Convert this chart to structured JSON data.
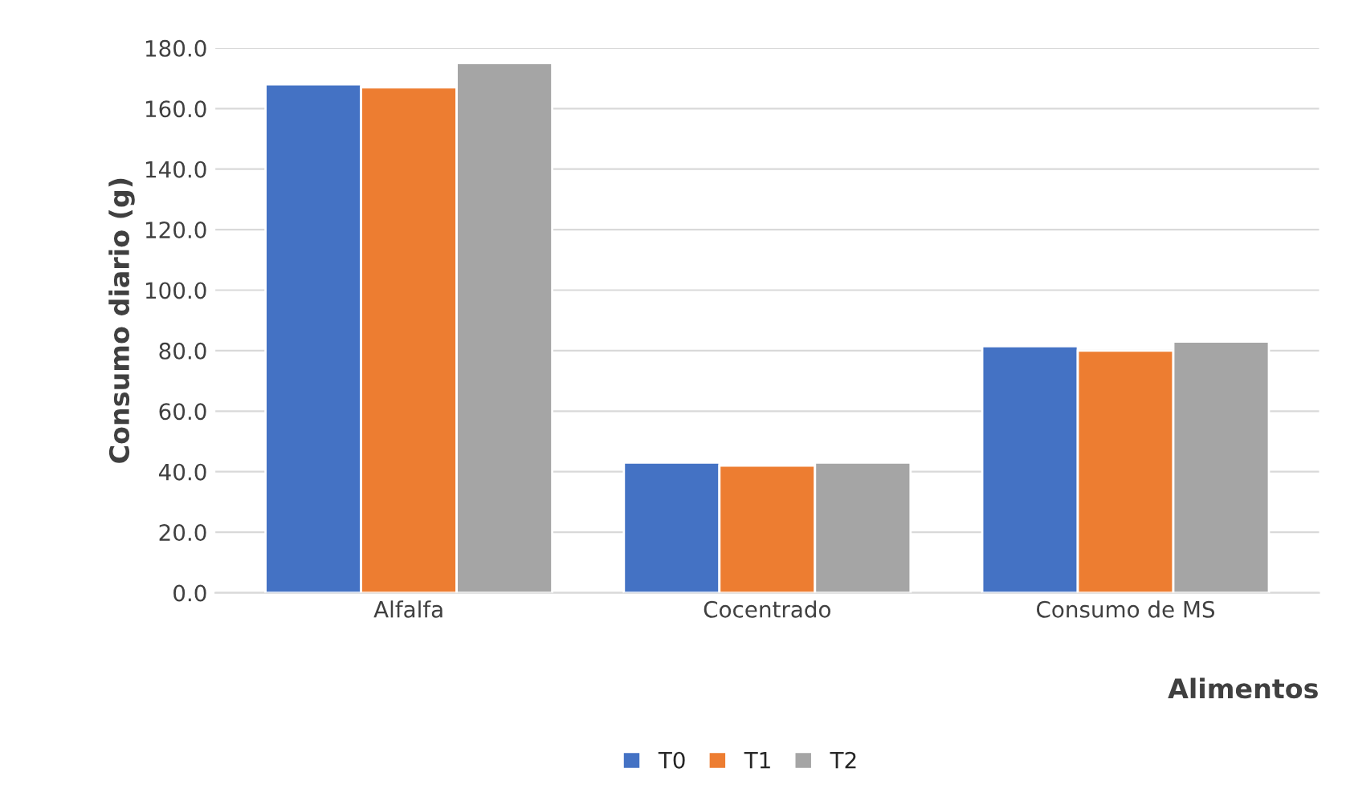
{
  "chart_data": {
    "type": "bar",
    "xlabel": "Alimentos",
    "ylabel": "Consumo diario (g)",
    "categories": [
      "Alfalfa",
      "Cocentrado",
      "Consumo de MS"
    ],
    "series": [
      {
        "name": "T0",
        "color": "#4472c4",
        "values": [
          168,
          43,
          81.5
        ]
      },
      {
        "name": "T1",
        "color": "#ed7d31",
        "values": [
          167,
          42,
          80
        ]
      },
      {
        "name": "T2",
        "color": "#a5a5a5",
        "values": [
          175,
          43,
          83
        ]
      }
    ],
    "ylim": [
      0,
      180
    ],
    "yticks": [
      {
        "value": 0,
        "label": "0.0"
      },
      {
        "value": 20,
        "label": "20.0"
      },
      {
        "value": 40,
        "label": "40.0"
      },
      {
        "value": 60,
        "label": "60.0"
      },
      {
        "value": 80,
        "label": "80.0"
      },
      {
        "value": 100,
        "label": "100.0"
      },
      {
        "value": 120,
        "label": "120.0"
      },
      {
        "value": 140,
        "label": "140.0"
      },
      {
        "value": 160,
        "label": "160.0"
      },
      {
        "value": 180,
        "label": "180.0"
      }
    ],
    "grid": "y",
    "legend": "bottom"
  }
}
